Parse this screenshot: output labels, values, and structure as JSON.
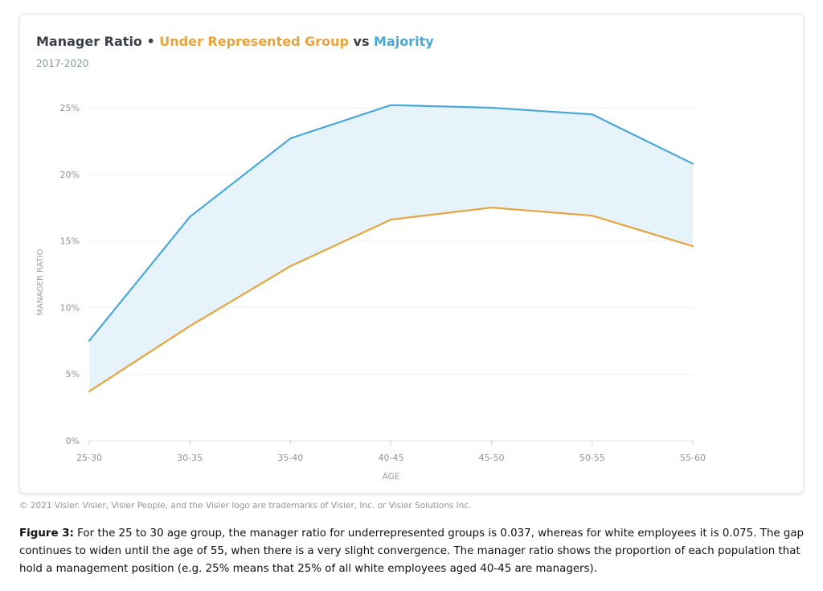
{
  "chart_data": {
    "type": "line",
    "title": {
      "prefix": "Manager Ratio • ",
      "series1_label": "Under Represented Group",
      "connector": " vs ",
      "series2_label": "Majority"
    },
    "subtitle": "2017-2020",
    "xlabel": "AGE",
    "ylabel": "MANAGER RATIO",
    "categories": [
      "25-30",
      "30-35",
      "35-40",
      "40-45",
      "45-50",
      "50-55",
      "55-60"
    ],
    "y_ticks": [
      "0%",
      "5%",
      "10%",
      "15%",
      "20%",
      "25%"
    ],
    "ylim": [
      0,
      25
    ],
    "grid": true,
    "shaded_gap": true,
    "series": [
      {
        "name": "Under Represented Group",
        "color": "#e8a33c",
        "values": [
          3.7,
          8.6,
          13.1,
          16.6,
          17.5,
          16.9,
          14.6
        ]
      },
      {
        "name": "Majority",
        "color": "#4aa8d8",
        "values": [
          7.5,
          16.8,
          22.7,
          25.2,
          25.0,
          24.5,
          20.8
        ]
      }
    ],
    "fill_color": "#e6f3fa"
  },
  "footer": {
    "copyright": "© 2021 Visier. Visier, Visier People, and the Visier logo are trademarks of Visier, Inc. or Visier Solutions Inc."
  },
  "caption": {
    "label": "Figure 3:",
    "text": " For the 25 to 30 age group, the manager ratio for underrepresented groups is 0.037, whereas for white employees it is 0.075. The gap continues to widen until the age of 55, when there is a very slight convergence. The manager ratio shows the proportion of each population that hold a management position (e.g. 25% means that 25% of all white employees aged 40-45 are managers)."
  }
}
